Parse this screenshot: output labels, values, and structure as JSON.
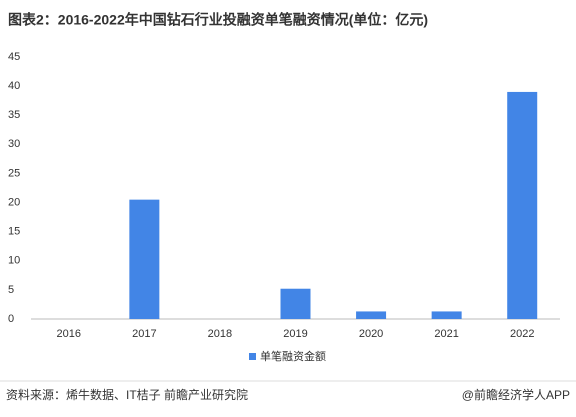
{
  "chart_data": {
    "type": "bar",
    "title": "图表2：2016-2022年中国钻石行业投融资单笔融资情况(单位：亿元)",
    "categories": [
      "2016",
      "2017",
      "2018",
      "2019",
      "2020",
      "2021",
      "2022"
    ],
    "series": [
      {
        "name": "单笔融资金额",
        "color": "#4285e6",
        "values": [
          0,
          20.5,
          0,
          5.2,
          1.3,
          1.3,
          39
        ]
      }
    ],
    "ylim": [
      0,
      45
    ],
    "yticks": [
      0,
      5,
      10,
      15,
      20,
      25,
      30,
      35,
      40,
      45
    ],
    "grid": false,
    "legend": "bottom"
  },
  "footer": {
    "source": "资料来源：烯牛数据、IT桔子 前瞻产业研究院",
    "credit": "@前瞻经济学人APP"
  }
}
